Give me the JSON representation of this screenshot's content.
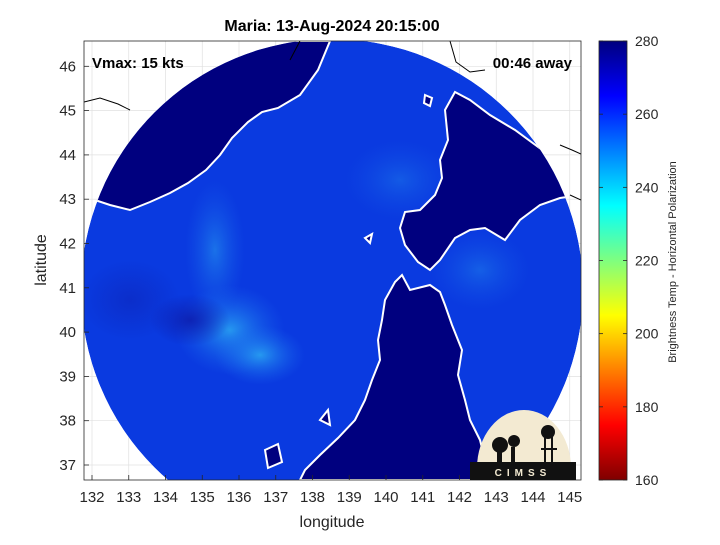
{
  "title": "Maria: 13-Aug-2024 20:15:00",
  "annotations": {
    "vmax": "Vmax: 15 kts",
    "away": "00:46 away"
  },
  "axes": {
    "xlabel": "longitude",
    "ylabel": "latitude",
    "x_ticks": [
      "132",
      "133",
      "134",
      "135",
      "136",
      "137",
      "138",
      "139",
      "140",
      "141",
      "142",
      "143",
      "144",
      "145"
    ],
    "y_ticks": [
      "37",
      "38",
      "39",
      "40",
      "41",
      "42",
      "43",
      "44",
      "45",
      "46"
    ]
  },
  "colorbar": {
    "label": "Brightness Temp - Horizontal Polarization",
    "ticks": [
      "280",
      "260",
      "240",
      "220",
      "200",
      "180",
      "160"
    ],
    "colors": [
      "#7f0000",
      "#ff0000",
      "#ff7f00",
      "#ffff00",
      "#7fff7f",
      "#00ffff",
      "#0080ff",
      "#0000ff",
      "#00007f"
    ]
  },
  "logo_text": "CIMSS",
  "colors": {
    "land": "#00007f",
    "ocean": "#0a3ae0",
    "coast": "#ffffff"
  }
}
